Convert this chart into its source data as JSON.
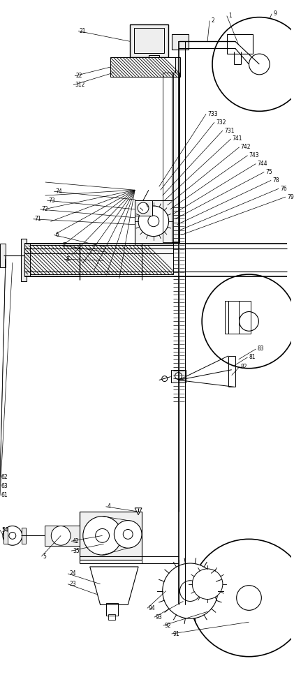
{
  "bg_color": "#ffffff",
  "lc": "#000000",
  "fig_width": 4.21,
  "fig_height": 10.0,
  "dpi": 100
}
